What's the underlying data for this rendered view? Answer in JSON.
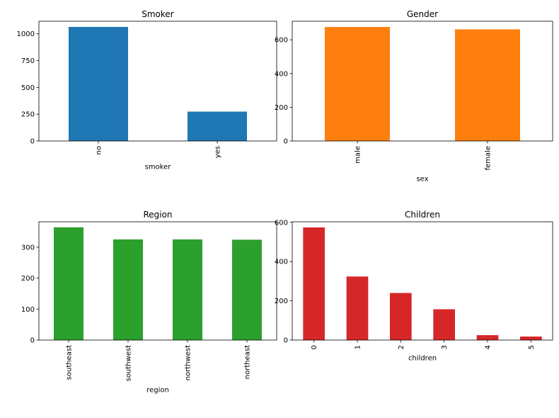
{
  "chart_data": [
    {
      "type": "bar",
      "title": "Smoker",
      "xlabel": "smoker",
      "ylabel": "",
      "categories": [
        "no",
        "yes"
      ],
      "values": [
        1064,
        274
      ],
      "ylim": [
        0,
        1117
      ],
      "yticks": [
        0,
        250,
        500,
        750,
        1000
      ],
      "color": "#1f77b4",
      "grid": false
    },
    {
      "type": "bar",
      "title": "Gender",
      "xlabel": "sex",
      "ylabel": "",
      "categories": [
        "male",
        "female"
      ],
      "values": [
        676,
        662
      ],
      "ylim": [
        0,
        710
      ],
      "yticks": [
        0,
        200,
        400,
        600
      ],
      "color": "#ff7f0e",
      "grid": false
    },
    {
      "type": "bar",
      "title": "Region",
      "xlabel": "region",
      "ylabel": "",
      "categories": [
        "southeast",
        "southwest",
        "northwest",
        "northeast"
      ],
      "values": [
        364,
        325,
        325,
        324
      ],
      "ylim": [
        0,
        382
      ],
      "yticks": [
        0,
        100,
        200,
        300
      ],
      "color": "#2ca02c",
      "grid": false
    },
    {
      "type": "bar",
      "title": "Children",
      "xlabel": "children",
      "ylabel": "",
      "categories": [
        "0",
        "1",
        "2",
        "3",
        "4",
        "5"
      ],
      "values": [
        574,
        324,
        240,
        157,
        25,
        18
      ],
      "ylim": [
        0,
        603
      ],
      "yticks": [
        0,
        200,
        400,
        600
      ],
      "color": "#d62728",
      "grid": false
    }
  ]
}
